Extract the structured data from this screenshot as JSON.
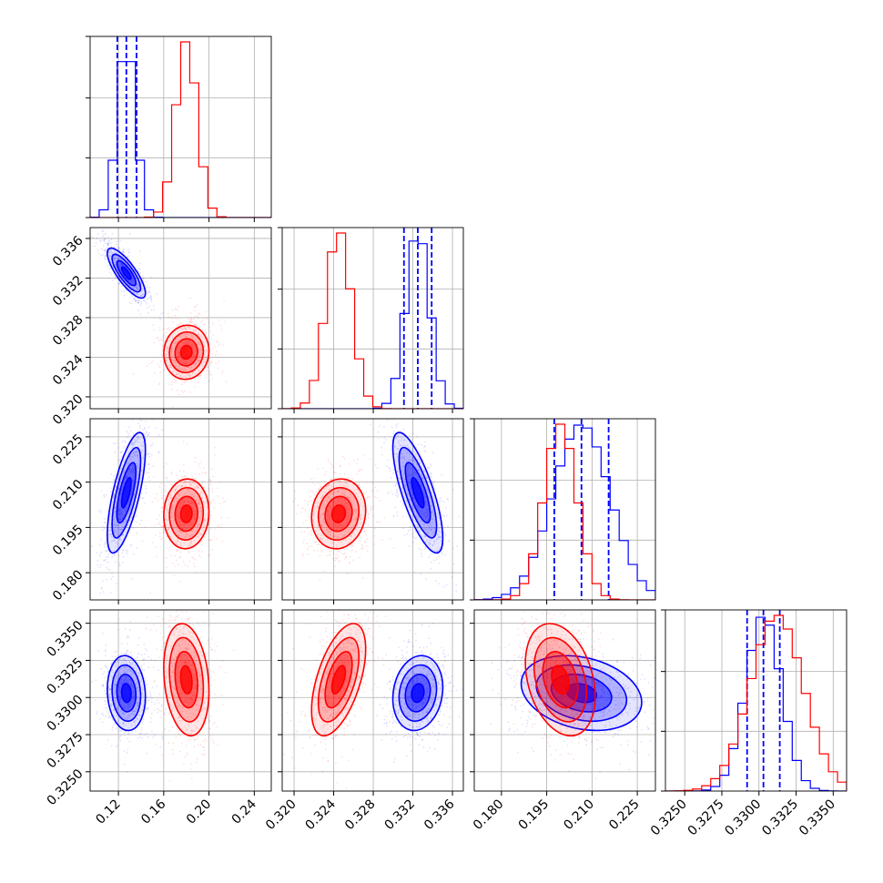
{
  "chart_data": {
    "type": "corner",
    "title": "",
    "colors": {
      "series_a": "#0000ff",
      "series_b": "#ff0000",
      "grid": "#b0b0b0",
      "axes": "#000000"
    },
    "series": [
      {
        "color": "#0000ff",
        "means": [
          0.127,
          0.3325,
          0.2065,
          0.3303
        ],
        "sds": [
          0.008,
          0.0012,
          0.0095,
          0.0012
        ],
        "corr": {
          "1-0": -0.8,
          "2-0": 0.7,
          "2-1": -0.75,
          "3-0": -0.1,
          "3-1": 0.15,
          "3-2": -0.25
        },
        "quantiles": [
          [
            0.119,
            0.127,
            0.136
          ],
          [
            0.3311,
            0.3325,
            0.3339
          ],
          [
            0.1975,
            0.2065,
            0.2155
          ],
          [
            0.3292,
            0.3303,
            0.3314
          ]
        ]
      },
      {
        "color": "#ff0000",
        "means": [
          0.18,
          0.3245,
          0.1995,
          0.3312
        ],
        "sds": [
          0.0095,
          0.0013,
          0.0055,
          0.0018
        ],
        "corr": {
          "1-0": 0.05,
          "2-0": 0.05,
          "2-1": 0.1,
          "3-0": -0.2,
          "3-1": 0.55,
          "3-2": -0.3
        },
        "quantiles": []
      }
    ],
    "ranges": [
      [
        0.095,
        0.255
      ],
      [
        0.3188,
        0.3371
      ],
      [
        0.171,
        0.231
      ],
      [
        0.3237,
        0.3359
      ]
    ],
    "ticks": [
      [
        "0.12",
        "0.16",
        "0.20",
        "0.24"
      ],
      [
        "0.320",
        "0.324",
        "0.328",
        "0.332",
        "0.336"
      ],
      [
        "0.180",
        "0.195",
        "0.210",
        "0.225"
      ],
      [
        "0.3250",
        "0.3275",
        "0.3300",
        "0.3325",
        "0.3350"
      ]
    ],
    "contour_levels": [
      0.5,
      1.0,
      1.5,
      2.0
    ],
    "grid": true,
    "legend": "none"
  }
}
